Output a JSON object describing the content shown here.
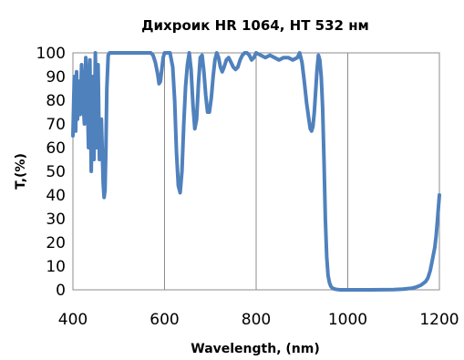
{
  "chart_data": {
    "type": "line",
    "title": "Дихроик HR 1064, HT 532 нм",
    "xlabel": "Wavelength, (nm)",
    "ylabel": "T,(%)",
    "xlim": [
      400,
      1200
    ],
    "ylim": [
      0,
      100
    ],
    "xticks": [
      400,
      600,
      800,
      1000,
      1200
    ],
    "yticks": [
      0,
      10,
      20,
      30,
      40,
      50,
      60,
      70,
      80,
      90,
      100
    ],
    "grid": "vertical",
    "color": "#4f81bd",
    "series": [
      {
        "x": [
          400,
          403,
          406,
          408,
          410,
          413,
          416,
          419,
          422,
          425,
          428,
          431,
          434,
          437,
          440,
          443,
          446,
          449,
          452,
          455,
          458,
          462,
          466,
          468,
          470,
          472,
          474,
          477,
          480,
          484,
          488,
          495,
          500,
          520,
          540,
          560,
          570,
          575,
          580,
          585,
          588,
          591,
          594,
          597,
          600,
          605,
          612,
          618,
          622,
          626,
          630,
          634,
          638,
          642,
          646,
          650,
          654,
          658,
          662,
          666,
          670,
          674,
          678,
          682,
          686,
          690,
          694,
          698,
          702,
          706,
          710,
          714,
          718,
          722,
          726,
          730,
          735,
          740,
          745,
          750,
          755,
          760,
          765,
          770,
          775,
          780,
          785,
          790,
          795,
          800,
          810,
          820,
          830,
          840,
          850,
          860,
          870,
          880,
          890,
          895,
          900,
          905,
          910,
          915,
          918,
          921,
          924,
          927,
          930,
          933,
          936,
          939,
          942,
          945,
          948,
          951,
          954,
          957,
          960,
          963,
          966,
          969,
          972,
          975,
          978,
          981,
          984,
          988,
          992,
          996,
          1000,
          1050,
          1100,
          1120,
          1140,
          1150,
          1160,
          1170,
          1175,
          1180,
          1185,
          1190,
          1193,
          1196,
          1200
        ],
        "y": [
          65,
          90,
          67,
          92,
          72,
          88,
          74,
          95,
          80,
          70,
          98,
          85,
          60,
          97,
          50,
          90,
          55,
          100,
          60,
          95,
          55,
          72,
          45,
          39,
          42,
          60,
          85,
          99,
          100,
          100,
          100,
          100,
          100,
          100,
          100,
          100,
          100,
          99,
          96,
          91,
          87,
          88,
          93,
          98,
          100,
          100,
          100,
          94,
          80,
          58,
          44,
          41,
          50,
          70,
          86,
          95,
          100,
          93,
          78,
          68,
          72,
          87,
          98,
          99,
          92,
          82,
          75,
          75,
          81,
          90,
          97,
          100,
          98,
          94,
          92,
          94,
          97,
          98,
          96,
          94,
          93,
          94,
          97,
          99,
          100,
          100,
          99,
          97,
          98,
          100,
          99,
          98,
          99,
          98,
          97,
          98,
          98,
          97,
          98,
          100,
          96,
          88,
          79,
          72,
          68,
          67,
          69,
          75,
          84,
          93,
          99,
          97,
          90,
          77,
          55,
          30,
          14,
          6,
          3,
          1.5,
          0.8,
          0.5,
          0.3,
          0.2,
          0.1,
          0.05,
          0,
          0,
          0,
          0,
          0,
          0,
          0.1,
          0.3,
          0.7,
          1.2,
          2,
          3.5,
          5,
          8,
          13,
          18,
          23,
          30,
          40
        ]
      }
    ]
  }
}
